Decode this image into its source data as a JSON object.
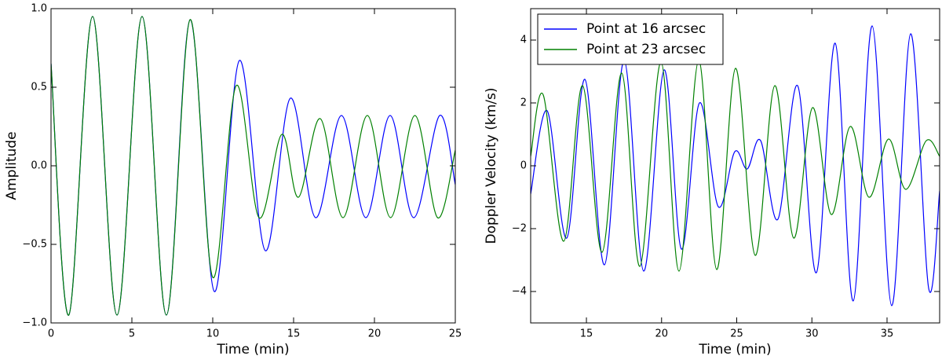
{
  "chart_data": [
    {
      "type": "line",
      "xlabel": "Time (min)",
      "ylabel": "Amplitude",
      "xlim": [
        0,
        25
      ],
      "ylim": [
        -1,
        1
      ],
      "xticks": [
        0,
        5,
        10,
        15,
        20,
        25
      ],
      "yticks": [
        {
          "value": -1,
          "label": "−1.0"
        },
        {
          "value": -0.5,
          "label": "−0.5"
        },
        {
          "value": 0,
          "label": "0.0"
        },
        {
          "value": 0.5,
          "label": "0.5"
        },
        {
          "value": 1,
          "label": "1.0"
        }
      ],
      "series": [
        {
          "color": "#0000ff",
          "x": [
            0,
            1.1,
            2.57,
            4.08,
            5.63,
            7.13,
            8.6,
            10.1,
            11.65,
            13.25,
            14.8,
            16.36,
            17.96,
            19.47,
            20.97,
            22.43,
            24.03,
            25
          ],
          "values": [
            0.65,
            -0.95,
            0.95,
            -0.95,
            0.95,
            -0.95,
            0.93,
            -0.8,
            0.67,
            -0.54,
            0.43,
            -0.33,
            0.32,
            -0.33,
            0.32,
            -0.33,
            0.32,
            -0.12
          ]
        },
        {
          "color": "#008000",
          "x": [
            0,
            1.1,
            2.57,
            4.08,
            5.63,
            7.13,
            8.6,
            10.0,
            11.45,
            12.86,
            14.27,
            15.3,
            16.65,
            18.06,
            19.56,
            21.0,
            22.5,
            23.9,
            25
          ],
          "values": [
            0.65,
            -0.95,
            0.95,
            -0.95,
            0.95,
            -0.95,
            0.93,
            -0.71,
            0.51,
            -0.33,
            0.2,
            -0.2,
            0.3,
            -0.33,
            0.32,
            -0.33,
            0.32,
            -0.33,
            0.1
          ]
        }
      ]
    },
    {
      "type": "line",
      "xlabel": "Time (min)",
      "ylabel": "Doppler Velocity (km/s)",
      "xlim": [
        11.29,
        38.5
      ],
      "ylim": [
        -5,
        5
      ],
      "xticks": [
        15,
        20,
        25,
        30,
        35
      ],
      "yticks": [
        {
          "value": -4,
          "label": "−4"
        },
        {
          "value": -2,
          "label": "−2"
        },
        0,
        2,
        4
      ],
      "legend": "upper left",
      "series": [
        {
          "name": "Point at 16 arcsec",
          "color": "#0000ff",
          "x": [
            11.29,
            12.39,
            13.69,
            14.9,
            16.2,
            17.51,
            18.81,
            20.17,
            21.32,
            22.52,
            23.77,
            24.87,
            25.7,
            26.59,
            27.74,
            29.05,
            30.3,
            31.55,
            32.75,
            34.01,
            35.31,
            36.57,
            37.77,
            38.5
          ],
          "values": [
            -0.9,
            1.75,
            -2.3,
            2.75,
            -3.15,
            3.35,
            -3.35,
            3.05,
            -2.65,
            2.0,
            -1.3,
            0.45,
            -0.1,
            0.8,
            -1.7,
            2.55,
            -3.4,
            3.9,
            -4.3,
            4.45,
            -4.45,
            4.2,
            -3.9,
            -0.8
          ]
        },
        {
          "name": "Point at 23 arcsec",
          "color": "#008000",
          "x": [
            11.29,
            12.13,
            13.49,
            14.74,
            16.04,
            17.35,
            18.55,
            19.96,
            21.16,
            22.47,
            23.67,
            24.92,
            26.23,
            27.53,
            28.79,
            30.04,
            31.29,
            32.55,
            33.8,
            35.1,
            36.25,
            37.61,
            38.5
          ],
          "values": [
            0.3,
            2.25,
            -2.4,
            2.55,
            -2.75,
            2.95,
            -3.2,
            3.3,
            -3.35,
            3.35,
            -3.3,
            3.1,
            -2.85,
            2.55,
            -2.3,
            1.85,
            -1.55,
            1.25,
            -1.0,
            0.85,
            -0.75,
            0.8,
            0.3
          ]
        }
      ]
    }
  ]
}
